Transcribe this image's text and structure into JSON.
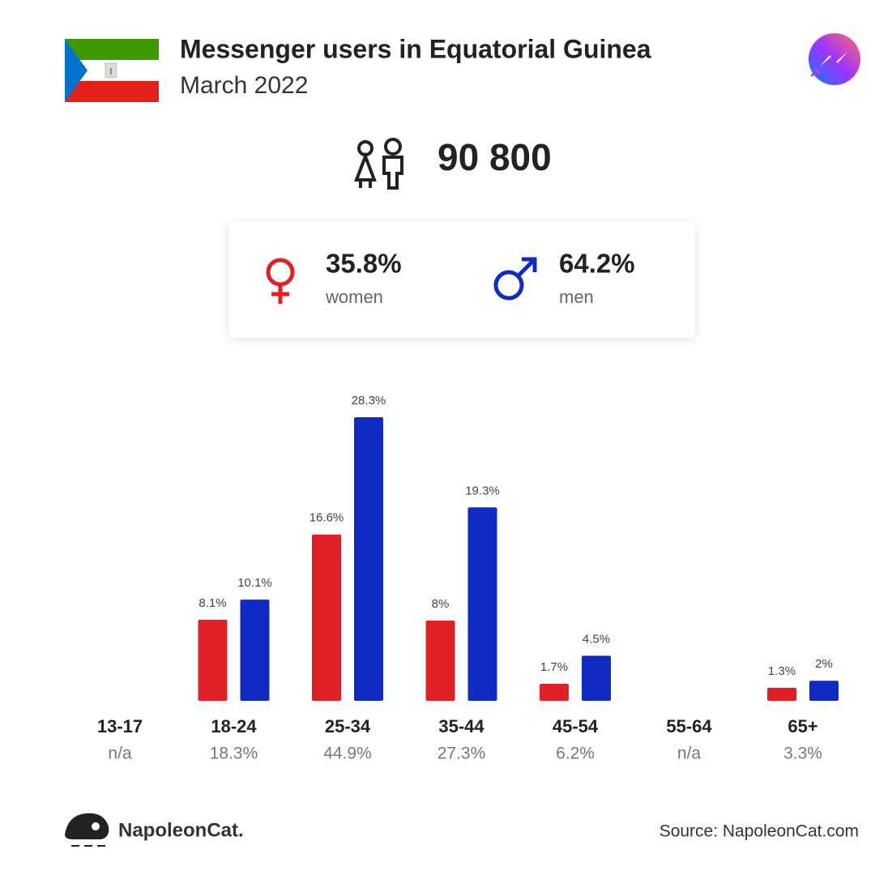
{
  "chart_data": {
    "type": "bar",
    "title": "Messenger users in Equatorial Guinea",
    "subtitle": "March 2022",
    "total": "90 800",
    "women_share": "35.8%",
    "women_label": "women",
    "men_share": "64.2%",
    "men_label": "men",
    "categories": [
      "13-17",
      "18-24",
      "25-34",
      "35-44",
      "45-54",
      "55-64",
      "65+"
    ],
    "category_totals": [
      "n/a",
      "18.3%",
      "44.9%",
      "27.3%",
      "6.2%",
      "n/a",
      "3.3%"
    ],
    "series": [
      {
        "name": "women",
        "color": "#e02027",
        "values": [
          null,
          8.1,
          16.6,
          8,
          1.7,
          null,
          1.3
        ],
        "value_labels": [
          null,
          "8.1%",
          "16.6%",
          "8%",
          "1.7%",
          null,
          "1.3%"
        ]
      },
      {
        "name": "men",
        "color": "#102bc4",
        "values": [
          null,
          10.1,
          28.3,
          19.3,
          4.5,
          null,
          2
        ],
        "value_labels": [
          null,
          "10.1%",
          "28.3%",
          "19.3%",
          "4.5%",
          null,
          "2%"
        ]
      }
    ],
    "brand": "NapoleonCat.",
    "source": "Source: NapoleonCat.com"
  }
}
